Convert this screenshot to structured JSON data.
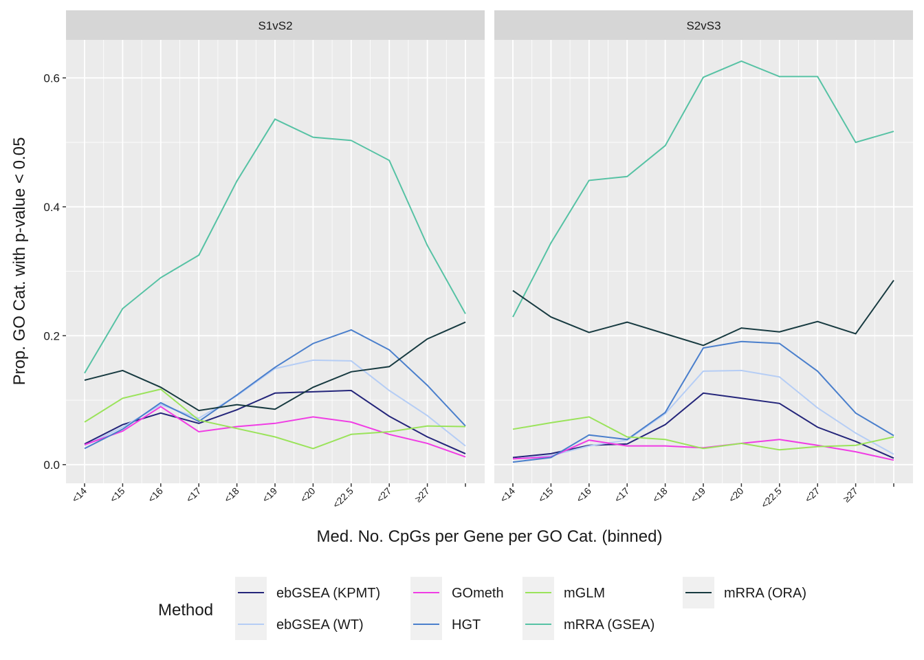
{
  "chart_data": {
    "type": "line",
    "x_label": "Med. No. CpGs per Gene per GO Cat. (binned)",
    "y_label": "Prop. GO Cat. with p-value < 0.05",
    "legend_title": "Method",
    "panels": [
      "S1vS2",
      "S2vS3"
    ],
    "categories": [
      "<14",
      "<15",
      "<16",
      "<17",
      "<18",
      "<19",
      "<20",
      "<22.5",
      "<27",
      "≥27",
      null
    ],
    "ylim": [
      -0.029,
      0.659
    ],
    "yticks": [
      {
        "value": 0,
        "label": "0.0"
      },
      0.2,
      0.4,
      0.6
    ],
    "grid": true,
    "series": [
      {
        "name": "ebGSEA (KPMT)",
        "color": "#24257a",
        "values": [
          [
            0.032,
            0.062,
            0.08,
            0.064,
            0.085,
            0.111,
            0.113,
            0.115,
            0.075,
            0.043,
            0.017
          ],
          [
            0.011,
            0.017,
            0.03,
            0.032,
            0.062,
            0.111,
            0.103,
            0.095,
            0.058,
            0.036,
            0.01
          ]
        ]
      },
      {
        "name": "ebGSEA (WT)",
        "color": "#b5cdf5",
        "values": [
          [
            0.03,
            0.058,
            0.093,
            0.072,
            0.107,
            0.149,
            0.162,
            0.161,
            0.115,
            0.076,
            0.029
          ],
          [
            0.009,
            0.014,
            0.029,
            0.038,
            0.079,
            0.145,
            0.146,
            0.136,
            0.088,
            0.049,
            0.016
          ]
        ]
      },
      {
        "name": "GOmeth",
        "color": "#f03ce4",
        "values": [
          [
            0.031,
            0.052,
            0.09,
            0.051,
            0.059,
            0.064,
            0.074,
            0.066,
            0.047,
            0.033,
            0.012
          ],
          [
            0.009,
            0.012,
            0.038,
            0.029,
            0.029,
            0.026,
            0.033,
            0.039,
            0.03,
            0.02,
            0.007
          ]
        ]
      },
      {
        "name": "HGT",
        "color": "#4a7fcc",
        "values": [
          [
            0.025,
            0.055,
            0.096,
            0.067,
            0.108,
            0.151,
            0.188,
            0.209,
            0.178,
            0.123,
            0.06
          ],
          [
            0.004,
            0.011,
            0.046,
            0.039,
            0.081,
            0.181,
            0.191,
            0.188,
            0.145,
            0.08,
            0.045
          ]
        ]
      },
      {
        "name": "mGLM",
        "color": "#9ae35a",
        "values": [
          [
            0.066,
            0.103,
            0.117,
            0.069,
            0.056,
            0.043,
            0.025,
            0.047,
            0.051,
            0.06,
            0.059
          ],
          [
            0.055,
            0.065,
            0.074,
            0.043,
            0.039,
            0.025,
            0.033,
            0.023,
            0.028,
            0.03,
            0.043
          ]
        ]
      },
      {
        "name": "mRRA (GSEA)",
        "color": "#56c2a4",
        "values": [
          [
            0.142,
            0.242,
            0.29,
            0.325,
            0.44,
            0.536,
            0.508,
            0.503,
            0.472,
            0.34,
            0.234
          ],
          [
            0.229,
            0.344,
            0.441,
            0.447,
            0.495,
            0.601,
            0.626,
            0.602,
            0.602,
            0.5,
            0.517
          ]
        ]
      },
      {
        "name": "mRRA (ORA)",
        "color": "#173a40",
        "values": [
          [
            0.131,
            0.146,
            0.12,
            0.084,
            0.093,
            0.086,
            0.12,
            0.144,
            0.152,
            0.195,
            0.221
          ],
          [
            0.27,
            0.229,
            0.205,
            0.221,
            0.203,
            0.185,
            0.212,
            0.206,
            0.222,
            0.203,
            0.286
          ]
        ]
      }
    ]
  }
}
